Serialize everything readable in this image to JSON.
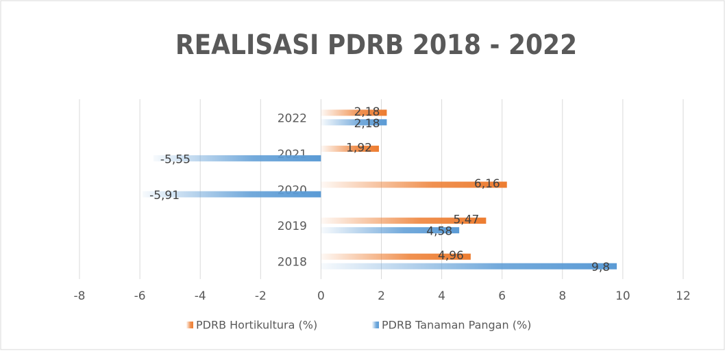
{
  "chart_data": {
    "type": "hbar",
    "title": "REALISASI PDRB 2018 - 2022",
    "categories": [
      "2018",
      "2019",
      "2020",
      "2021",
      "2022"
    ],
    "series": [
      {
        "name": "PDRB Hortikultura (%)",
        "color": "#ED7D31",
        "values": [
          4.96,
          5.47,
          6.16,
          1.92,
          2.18
        ],
        "value_labels": [
          "4,96",
          "5,47",
          "6,16",
          "1,92",
          "2,18"
        ]
      },
      {
        "name": "PDRB Tanaman Pangan (%)",
        "color": "#5B9BD5",
        "values": [
          9.8,
          4.58,
          -5.91,
          -5.55,
          2.18
        ],
        "value_labels": [
          "9,8",
          "4,58",
          "-5,91",
          "-5,55",
          "2,18"
        ]
      }
    ],
    "xlim": [
      -8,
      12
    ],
    "xticks": [
      -8,
      -6,
      -4,
      -2,
      0,
      2,
      4,
      6,
      8,
      10,
      12
    ],
    "grid": true,
    "legend": "bottom"
  }
}
